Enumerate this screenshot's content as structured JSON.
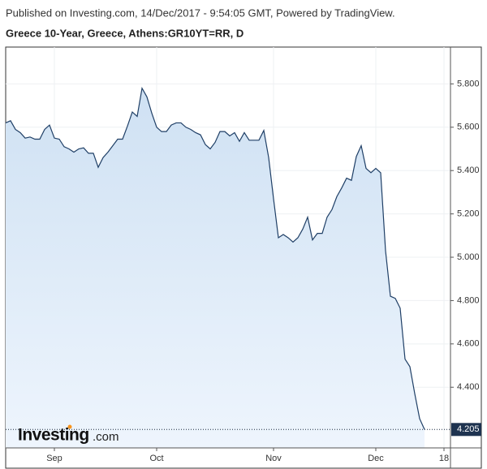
{
  "header": {
    "published": "Published on Investing.com, 14/Dec/2017 - 9:54:05 GMT, Powered by TradingView.",
    "symbol": "Greece 10-Year, Greece, Athens:GR10YT=RR, D"
  },
  "logo": {
    "brand": "Investing",
    "suffix": ".com"
  },
  "chart_data": {
    "type": "area",
    "color": "#1f3f66",
    "fill_color": "#d6e6f6",
    "grid": true,
    "categories": [
      null,
      null,
      null,
      null,
      null,
      null,
      null,
      null,
      null,
      null,
      "Sep",
      null,
      null,
      null,
      null,
      null,
      null,
      null,
      null,
      null,
      null,
      null,
      null,
      null,
      null,
      null,
      null,
      null,
      null,
      null,
      null,
      "Oct",
      null,
      null,
      null,
      null,
      null,
      null,
      null,
      null,
      null,
      null,
      null,
      null,
      null,
      null,
      null,
      null,
      null,
      null,
      null,
      null,
      null,
      null,
      null,
      "Nov",
      null,
      null,
      null,
      null,
      null,
      null,
      null,
      null,
      null,
      null,
      null,
      null,
      null,
      null,
      null,
      null,
      null,
      null,
      null,
      null,
      "Dec",
      null,
      null,
      null,
      null,
      null,
      null,
      null,
      null,
      null,
      null,
      null,
      null,
      null,
      "18"
    ],
    "values": [
      5.62,
      5.63,
      5.59,
      5.575,
      5.55,
      5.555,
      5.545,
      5.545,
      5.59,
      5.61,
      5.55,
      5.545,
      5.51,
      5.5,
      5.485,
      5.5,
      5.505,
      5.48,
      5.48,
      5.415,
      5.46,
      5.485,
      5.515,
      5.545,
      5.545,
      5.605,
      5.67,
      5.65,
      5.78,
      5.74,
      5.665,
      5.6,
      5.58,
      5.58,
      5.61,
      5.62,
      5.62,
      5.6,
      5.59,
      5.575,
      5.565,
      5.52,
      5.5,
      5.53,
      5.58,
      5.58,
      5.56,
      5.575,
      5.535,
      5.575,
      5.54,
      5.54,
      5.54,
      5.585,
      5.46,
      5.27,
      5.09,
      5.105,
      5.09,
      5.07,
      5.09,
      5.13,
      5.185,
      5.08,
      5.11,
      5.11,
      5.185,
      5.22,
      5.28,
      5.32,
      5.365,
      5.355,
      5.465,
      5.515,
      5.41,
      5.39,
      5.41,
      5.39,
      5.03,
      4.82,
      4.81,
      4.765,
      4.53,
      4.495,
      4.37,
      4.255,
      4.205,
      null,
      null,
      null,
      null
    ],
    "last_value_label": "4.205",
    "ylim": [
      4.12,
      5.97
    ],
    "yticks": [
      {
        "value": 4.4,
        "label": "4.400"
      },
      {
        "value": 4.6,
        "label": "4.600"
      },
      {
        "value": 4.8,
        "label": "4.800"
      },
      {
        "value": 5.0,
        "label": "5.000"
      },
      {
        "value": 5.2,
        "label": "5.200"
      },
      {
        "value": 5.4,
        "label": "5.400"
      },
      {
        "value": 5.6,
        "label": "5.600"
      },
      {
        "value": 5.8,
        "label": "5.800"
      }
    ]
  }
}
